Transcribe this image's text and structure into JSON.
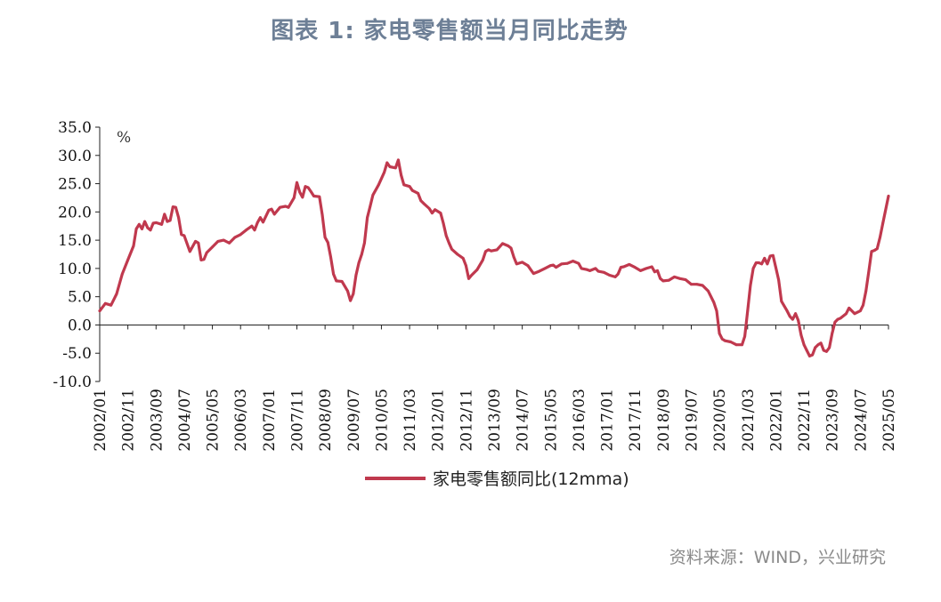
{
  "header": {
    "title": "图表 1: 家电零售额当月同比走势"
  },
  "footer": {
    "source": "资料来源：WIND，兴业研究"
  },
  "chart_data": {
    "type": "line",
    "unit_label": "%",
    "ylim": [
      -10,
      35
    ],
    "yticks": [
      35.0,
      30.0,
      25.0,
      20.0,
      15.0,
      10.0,
      5.0,
      0.0,
      -5.0,
      -10.0
    ],
    "ytick_labels": [
      "35.0",
      "30.0",
      "25.0",
      "20.0",
      "15.0",
      "10.0",
      "5.0",
      "0.0",
      "-5.0",
      "-10.0"
    ],
    "xtick_labels": [
      "2002/01",
      "2002/11",
      "2003/09",
      "2004/07",
      "2005/05",
      "2006/03",
      "2007/01",
      "2007/11",
      "2008/09",
      "2009/07",
      "2010/05",
      "2011/03",
      "2012/01",
      "2012/11",
      "2013/09",
      "2014/07",
      "2015/05",
      "2016/03",
      "2017/01",
      "2017/11",
      "2018/09",
      "2019/07",
      "2020/05",
      "2021/03",
      "2022/01",
      "2022/11",
      "2023/09",
      "2024/07",
      "2025/05"
    ],
    "grid": false,
    "legend_position": "bottom",
    "line_color": "#c0394e",
    "series": [
      {
        "name": "家电零售额同比(12mma)",
        "points": [
          [
            "2002/01",
            2.5
          ],
          [
            "2002/03",
            3.8
          ],
          [
            "2002/05",
            3.5
          ],
          [
            "2002/07",
            5.5
          ],
          [
            "2002/09",
            9.0
          ],
          [
            "2002/11",
            11.5
          ],
          [
            "2003/01",
            14.0
          ],
          [
            "2003/02",
            17.0
          ],
          [
            "2003/03",
            17.8
          ],
          [
            "2003/04",
            17.0
          ],
          [
            "2003/05",
            18.3
          ],
          [
            "2003/06",
            17.2
          ],
          [
            "2003/07",
            16.8
          ],
          [
            "2003/08",
            18.0
          ],
          [
            "2003/09",
            18.1
          ],
          [
            "2003/11",
            17.8
          ],
          [
            "2003/12",
            19.6
          ],
          [
            "2004/01",
            18.3
          ],
          [
            "2004/02",
            18.5
          ],
          [
            "2004/03",
            20.9
          ],
          [
            "2004/04",
            20.8
          ],
          [
            "2004/05",
            19.0
          ],
          [
            "2004/06",
            16.0
          ],
          [
            "2004/07",
            15.8
          ],
          [
            "2004/09",
            13.0
          ],
          [
            "2004/11",
            14.8
          ],
          [
            "2004/12",
            14.5
          ],
          [
            "2005/01",
            11.5
          ],
          [
            "2005/02",
            11.6
          ],
          [
            "2005/03",
            12.8
          ],
          [
            "2005/05",
            13.8
          ],
          [
            "2005/07",
            14.8
          ],
          [
            "2005/09",
            15.0
          ],
          [
            "2005/11",
            14.5
          ],
          [
            "2006/01",
            15.5
          ],
          [
            "2006/03",
            16.0
          ],
          [
            "2006/05",
            16.8
          ],
          [
            "2006/07",
            17.5
          ],
          [
            "2006/08",
            16.8
          ],
          [
            "2006/09",
            18.1
          ],
          [
            "2006/10",
            19.0
          ],
          [
            "2006/11",
            18.2
          ],
          [
            "2007/01",
            20.3
          ],
          [
            "2007/02",
            20.5
          ],
          [
            "2007/03",
            19.6
          ],
          [
            "2007/05",
            20.8
          ],
          [
            "2007/07",
            21.0
          ],
          [
            "2007/08",
            20.8
          ],
          [
            "2007/10",
            22.5
          ],
          [
            "2007/11",
            25.2
          ],
          [
            "2007/12",
            23.5
          ],
          [
            "2008/01",
            22.6
          ],
          [
            "2008/02",
            24.5
          ],
          [
            "2008/03",
            24.3
          ],
          [
            "2008/04",
            23.6
          ],
          [
            "2008/05",
            22.8
          ],
          [
            "2008/07",
            22.7
          ],
          [
            "2008/08",
            19.5
          ],
          [
            "2008/09",
            15.5
          ],
          [
            "2008/10",
            14.6
          ],
          [
            "2008/11",
            12.0
          ],
          [
            "2008/12",
            9.0
          ],
          [
            "2009/01",
            7.8
          ],
          [
            "2009/03",
            7.7
          ],
          [
            "2009/05",
            6.0
          ],
          [
            "2009/06",
            4.3
          ],
          [
            "2009/07",
            5.5
          ],
          [
            "2009/08",
            8.8
          ],
          [
            "2009/09",
            11.0
          ],
          [
            "2009/10",
            12.5
          ],
          [
            "2009/11",
            14.5
          ],
          [
            "2009/12",
            19.0
          ],
          [
            "2010/01",
            21.0
          ],
          [
            "2010/02",
            23.0
          ],
          [
            "2010/04",
            24.8
          ],
          [
            "2010/06",
            27.0
          ],
          [
            "2010/07",
            28.7
          ],
          [
            "2010/08",
            28.0
          ],
          [
            "2010/10",
            27.8
          ],
          [
            "2010/11",
            29.2
          ],
          [
            "2010/12",
            26.5
          ],
          [
            "2011/01",
            24.8
          ],
          [
            "2011/03",
            24.5
          ],
          [
            "2011/04",
            23.8
          ],
          [
            "2011/06",
            23.3
          ],
          [
            "2011/07",
            22.0
          ],
          [
            "2011/08",
            21.5
          ],
          [
            "2011/10",
            20.6
          ],
          [
            "2011/11",
            19.8
          ],
          [
            "2011/12",
            20.4
          ],
          [
            "2012/02",
            19.8
          ],
          [
            "2012/03",
            18.0
          ],
          [
            "2012/04",
            15.8
          ],
          [
            "2012/05",
            14.5
          ],
          [
            "2012/06",
            13.4
          ],
          [
            "2012/08",
            12.5
          ],
          [
            "2012/10",
            11.8
          ],
          [
            "2012/11",
            10.5
          ],
          [
            "2012/12",
            8.2
          ],
          [
            "2013/01",
            8.8
          ],
          [
            "2013/03",
            9.8
          ],
          [
            "2013/05",
            11.5
          ],
          [
            "2013/06",
            13.0
          ],
          [
            "2013/07",
            13.3
          ],
          [
            "2013/08",
            13.1
          ],
          [
            "2013/10",
            13.3
          ],
          [
            "2013/12",
            14.4
          ],
          [
            "2014/02",
            14.0
          ],
          [
            "2014/03",
            13.6
          ],
          [
            "2014/04",
            12.0
          ],
          [
            "2014/05",
            10.8
          ],
          [
            "2014/07",
            11.1
          ],
          [
            "2014/09",
            10.5
          ],
          [
            "2014/10",
            9.8
          ],
          [
            "2014/11",
            9.1
          ],
          [
            "2015/01",
            9.5
          ],
          [
            "2015/03",
            10.0
          ],
          [
            "2015/05",
            10.5
          ],
          [
            "2015/06",
            10.6
          ],
          [
            "2015/07",
            10.2
          ],
          [
            "2015/09",
            10.8
          ],
          [
            "2015/11",
            10.9
          ],
          [
            "2016/01",
            11.3
          ],
          [
            "2016/03",
            10.9
          ],
          [
            "2016/04",
            10.0
          ],
          [
            "2016/06",
            9.8
          ],
          [
            "2016/07",
            9.6
          ],
          [
            "2016/09",
            10.0
          ],
          [
            "2016/10",
            9.5
          ],
          [
            "2016/12",
            9.3
          ],
          [
            "2017/02",
            8.8
          ],
          [
            "2017/04",
            8.5
          ],
          [
            "2017/05",
            9.0
          ],
          [
            "2017/06",
            10.2
          ],
          [
            "2017/07",
            10.3
          ],
          [
            "2017/09",
            10.7
          ],
          [
            "2017/11",
            10.2
          ],
          [
            "2018/01",
            9.6
          ],
          [
            "2018/03",
            10.0
          ],
          [
            "2018/05",
            10.3
          ],
          [
            "2018/06",
            9.4
          ],
          [
            "2018/07",
            9.6
          ],
          [
            "2018/08",
            8.2
          ],
          [
            "2018/09",
            7.8
          ],
          [
            "2018/11",
            7.9
          ],
          [
            "2019/01",
            8.5
          ],
          [
            "2019/03",
            8.2
          ],
          [
            "2019/05",
            8.0
          ],
          [
            "2019/06",
            7.6
          ],
          [
            "2019/07",
            7.2
          ],
          [
            "2019/09",
            7.2
          ],
          [
            "2019/11",
            7.0
          ],
          [
            "2020/01",
            6.0
          ],
          [
            "2020/03",
            4.0
          ],
          [
            "2020/04",
            2.5
          ],
          [
            "2020/05",
            -1.5
          ],
          [
            "2020/06",
            -2.5
          ],
          [
            "2020/07",
            -2.8
          ],
          [
            "2020/09",
            -3.0
          ],
          [
            "2020/11",
            -3.5
          ],
          [
            "2021/01",
            -3.5
          ],
          [
            "2021/02",
            -2.0
          ],
          [
            "2021/03",
            2.5
          ],
          [
            "2021/04",
            7.0
          ],
          [
            "2021/05",
            10.0
          ],
          [
            "2021/06",
            11.0
          ],
          [
            "2021/07",
            11.0
          ],
          [
            "2021/08",
            10.8
          ],
          [
            "2021/09",
            11.8
          ],
          [
            "2021/10",
            10.8
          ],
          [
            "2021/11",
            12.2
          ],
          [
            "2021/12",
            12.3
          ],
          [
            "2022/01",
            10.2
          ],
          [
            "2022/02",
            8.0
          ],
          [
            "2022/03",
            4.2
          ],
          [
            "2022/05",
            2.5
          ],
          [
            "2022/06",
            1.5
          ],
          [
            "2022/07",
            1.0
          ],
          [
            "2022/08",
            2.0
          ],
          [
            "2022/09",
            0.8
          ],
          [
            "2022/10",
            -1.8
          ],
          [
            "2022/11",
            -3.5
          ],
          [
            "2022/12",
            -4.5
          ],
          [
            "2023/01",
            -5.5
          ],
          [
            "2023/02",
            -5.3
          ],
          [
            "2023/03",
            -4.0
          ],
          [
            "2023/04",
            -3.5
          ],
          [
            "2023/05",
            -3.2
          ],
          [
            "2023/06",
            -4.5
          ],
          [
            "2023/07",
            -4.7
          ],
          [
            "2023/08",
            -4.0
          ],
          [
            "2023/09",
            -1.5
          ],
          [
            "2023/10",
            0.5
          ],
          [
            "2023/11",
            1.0
          ],
          [
            "2023/12",
            1.2
          ],
          [
            "2024/02",
            2.0
          ],
          [
            "2024/03",
            3.0
          ],
          [
            "2024/04",
            2.5
          ],
          [
            "2024/05",
            2.0
          ],
          [
            "2024/07",
            2.5
          ],
          [
            "2024/08",
            3.5
          ],
          [
            "2024/09",
            6.0
          ],
          [
            "2024/10",
            9.5
          ],
          [
            "2024/11",
            13.0
          ],
          [
            "2024/12",
            13.2
          ],
          [
            "2025/01",
            13.5
          ],
          [
            "2025/02",
            15.5
          ],
          [
            "2025/03",
            18.0
          ],
          [
            "2025/05",
            22.8
          ]
        ]
      }
    ]
  }
}
